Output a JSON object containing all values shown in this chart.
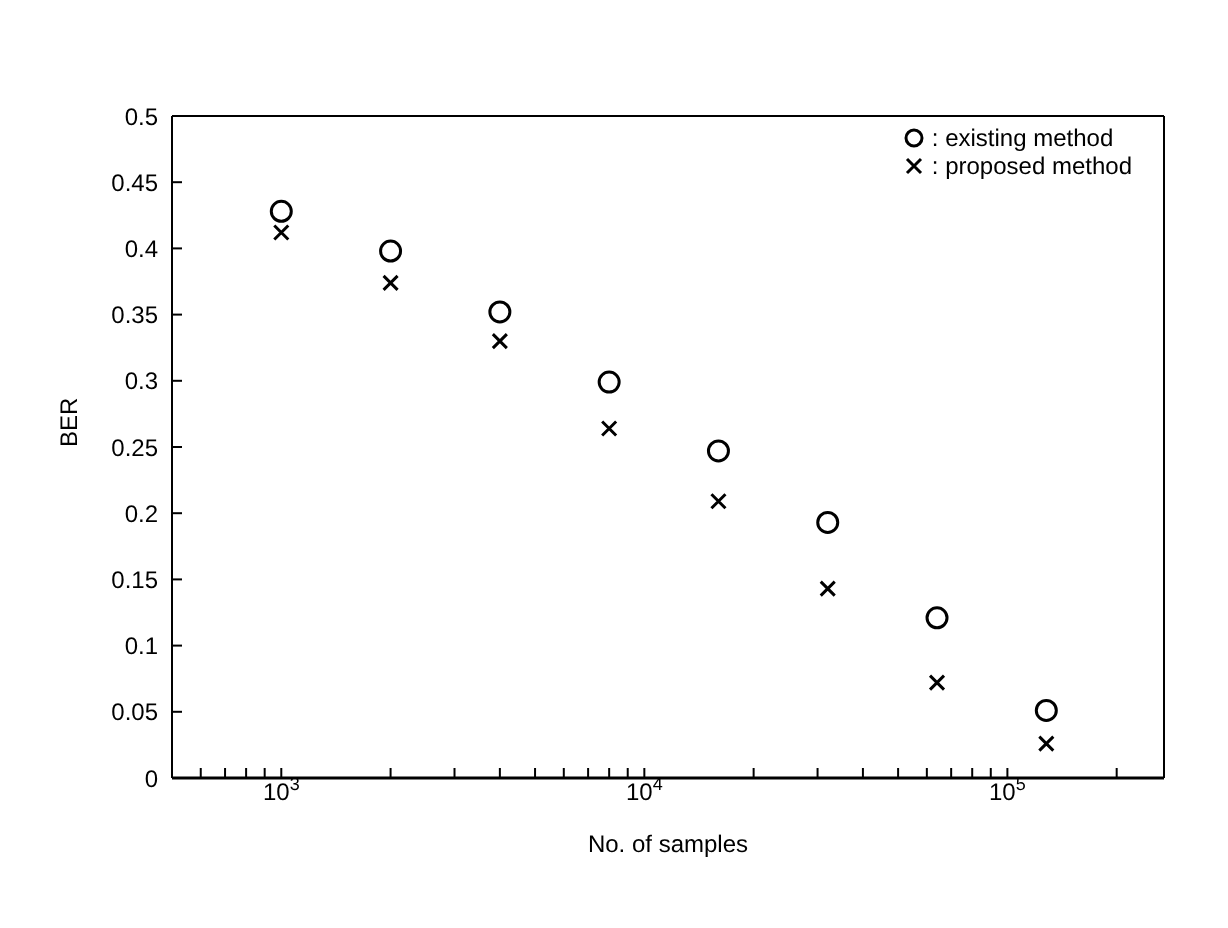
{
  "chart_data": {
    "type": "scatter",
    "xlabel": "No. of samples",
    "ylabel": "BER",
    "log": "x",
    "legend": "top right",
    "x": [
      1000,
      2000,
      4000,
      8000,
      16000,
      32000,
      64000,
      128000
    ],
    "series": [
      {
        "name": ": existing method",
        "color": "#000000",
        "marker": "circle",
        "values": [
          0.428,
          0.398,
          0.352,
          0.299,
          0.247,
          0.193,
          0.121,
          0.051
        ]
      },
      {
        "name": ": proposed method",
        "color": "#000000",
        "marker": "cross",
        "values": [
          0.412,
          0.374,
          0.33,
          0.264,
          0.209,
          0.143,
          0.072,
          0.026
        ]
      }
    ],
    "xlim": [
      500,
      270000
    ],
    "xticks": [
      {
        "value": 500,
        "label": null
      },
      {
        "value": 600,
        "label": null
      },
      {
        "value": 700,
        "label": null
      },
      {
        "value": 800,
        "label": null
      },
      {
        "value": 900,
        "label": null
      },
      {
        "value": 1000,
        "label": "10$^{3}$"
      },
      {
        "value": 2000,
        "label": null
      },
      {
        "value": 3000,
        "label": null
      },
      {
        "value": 4000,
        "label": null
      },
      {
        "value": 5000,
        "label": null
      },
      {
        "value": 6000,
        "label": null
      },
      {
        "value": 7000,
        "label": null
      },
      {
        "value": 8000,
        "label": null
      },
      {
        "value": 9000,
        "label": null
      },
      {
        "value": 10000,
        "label": "10$^{4}$"
      },
      {
        "value": 20000,
        "label": null
      },
      {
        "value": 30000,
        "label": null
      },
      {
        "value": 40000,
        "label": null
      },
      {
        "value": 50000,
        "label": null
      },
      {
        "value": 60000,
        "label": null
      },
      {
        "value": 70000,
        "label": null
      },
      {
        "value": 80000,
        "label": null
      },
      {
        "value": 90000,
        "label": null
      },
      {
        "value": 100000,
        "label": "10$^{5}$"
      },
      {
        "value": 200000,
        "label": null
      }
    ],
    "ylim": [
      0,
      0.5
    ],
    "yticks": [
      0,
      0.05,
      0.1,
      0.15,
      0.2,
      0.25,
      0.3,
      0.35,
      0.4,
      0.45,
      0.5
    ]
  }
}
